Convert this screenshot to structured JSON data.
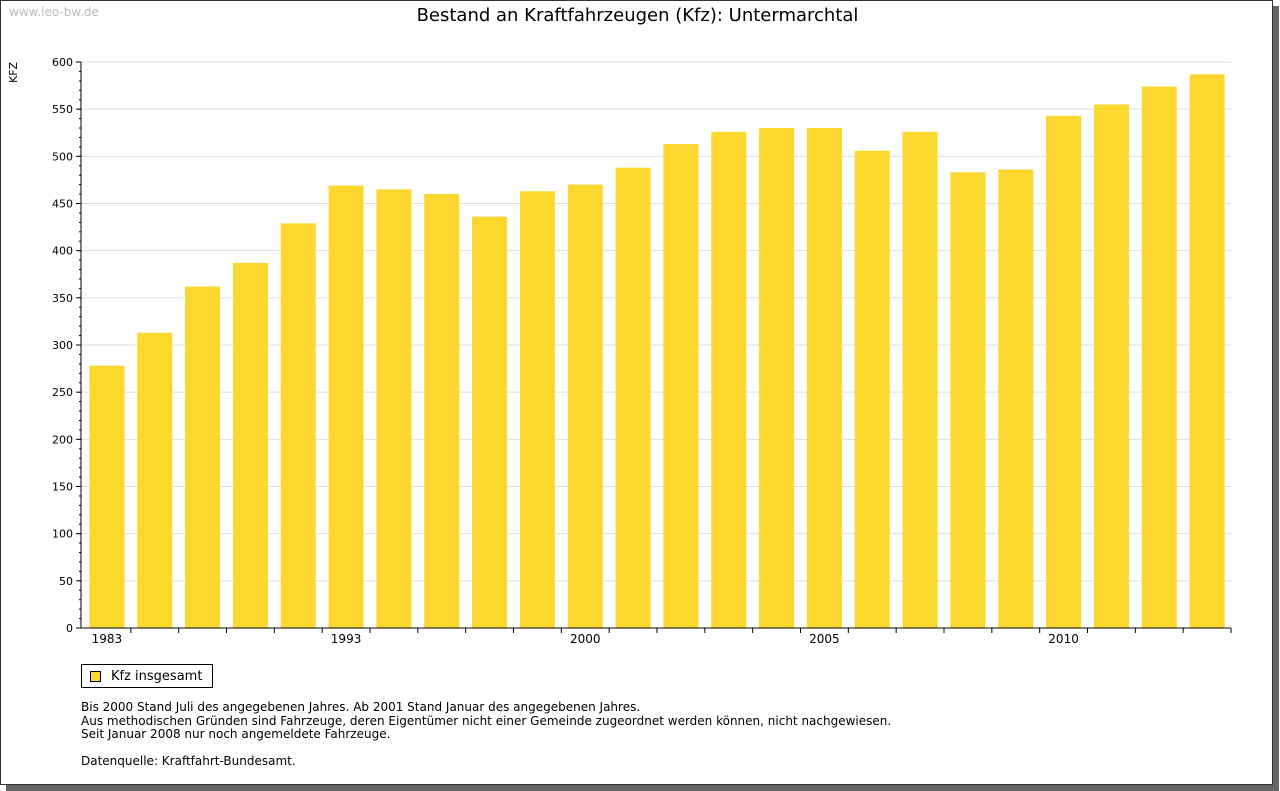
{
  "watermark": "www.leo-bw.de",
  "chart_data": {
    "type": "bar",
    "title": "Bestand an Kraftfahrzeugen (Kfz): Untermarchtal",
    "ylabel": "KFZ",
    "xlabel": "",
    "ylim": [
      0,
      600
    ],
    "yticks": [
      0,
      50,
      100,
      150,
      200,
      250,
      300,
      350,
      400,
      450,
      500,
      550,
      600
    ],
    "categories": [
      "1983",
      "",
      "",
      "",
      "",
      "1993",
      "",
      "",
      "",
      "",
      "2000",
      "",
      "",
      "",
      "",
      "2005",
      "",
      "",
      "",
      "",
      "2010",
      "",
      "",
      ""
    ],
    "series": [
      {
        "name": "Kfz insgesamt",
        "color": "#fcd72e",
        "values": [
          278,
          313,
          362,
          387,
          429,
          469,
          465,
          460,
          436,
          463,
          470,
          488,
          513,
          526,
          530,
          530,
          506,
          526,
          483,
          486,
          543,
          555,
          574,
          587
        ]
      }
    ],
    "grid": true,
    "legend": "bottom-left"
  },
  "notes": [
    "Bis 2000 Stand Juli des angegebenen Jahres. Ab 2001 Stand Januar des angegebenen Jahres.",
    "Aus methodischen Gründen sind Fahrzeuge, deren Eigentümer nicht einer Gemeinde zugeordnet werden können, nicht nachgewiesen.",
    "Seit Januar 2008 nur noch angemeldete Fahrzeuge."
  ],
  "source": "Datenquelle: Kraftfahrt-Bundesamt."
}
